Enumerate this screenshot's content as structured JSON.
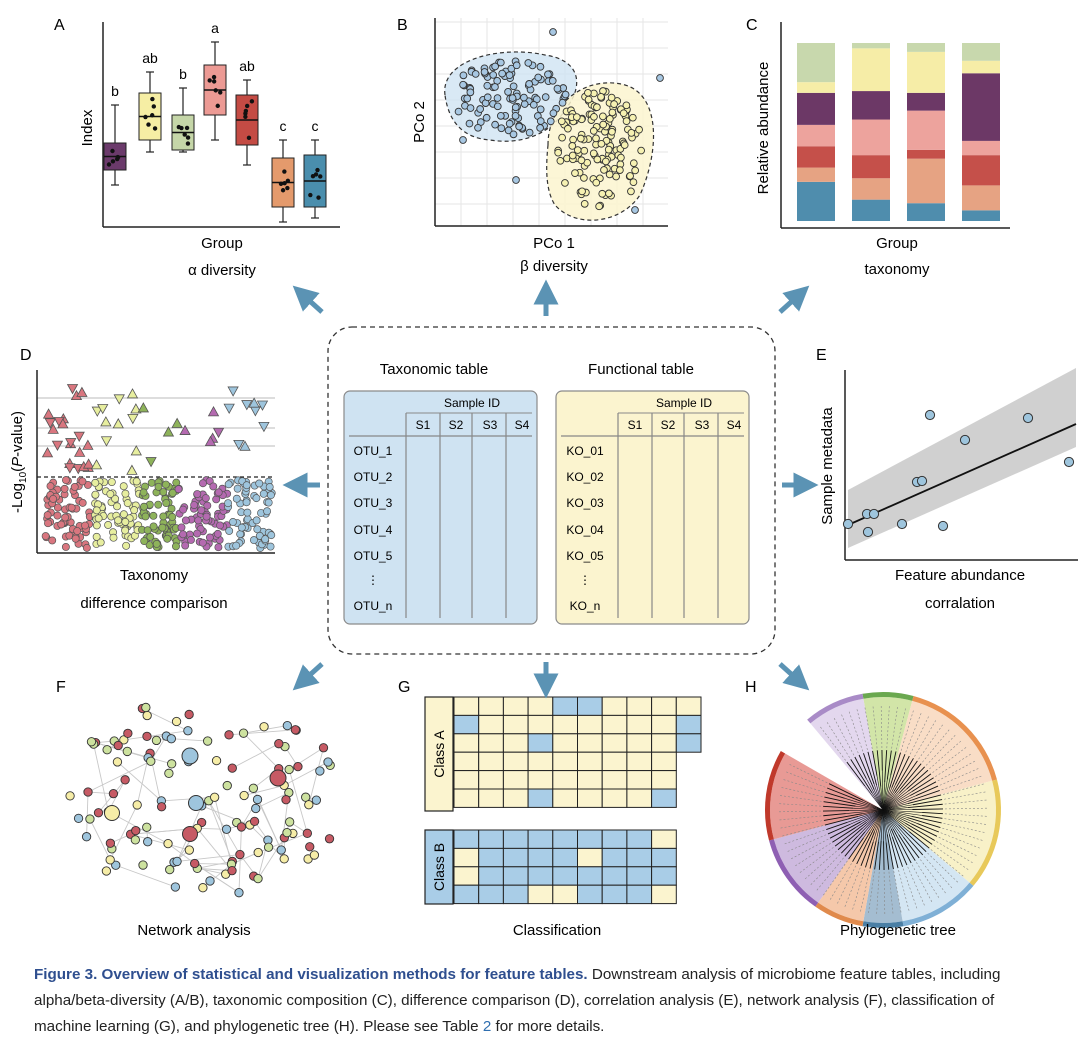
{
  "panels": {
    "A": {
      "letter": "A",
      "ylabel": "Index",
      "xlabel": "Group",
      "subtitle": "α diversity",
      "group_letters": [
        "b",
        "ab",
        "b",
        "a",
        "ab",
        "c",
        "c"
      ],
      "colors": [
        "#6b3a6b",
        "#f6eea4",
        "#c5d6a8",
        "#ec9a94",
        "#c44b44",
        "#e49a6c",
        "#4a8ead"
      ]
    },
    "B": {
      "letter": "B",
      "ylabel": "PCo 2",
      "xlabel": "PCo 1",
      "subtitle": "β diversity",
      "colors": [
        "#a7c7e2",
        "#f6f1b2"
      ]
    },
    "C": {
      "letter": "C",
      "ylabel": "Relative abundance",
      "xlabel": "Group",
      "subtitle": "taxonomy",
      "colors": [
        "#4f8dad",
        "#e6a383",
        "#c5504a",
        "#eda39d",
        "#6c3866",
        "#f6eda7",
        "#c8d8ad"
      ]
    },
    "D": {
      "letter": "D",
      "ylabel_pre": "-Log",
      "ylabel_sub": "10",
      "ylabel_mid": "(",
      "ylabel_italic": "P",
      "ylabel_post": "-value)",
      "xlabel": "Taxonomy",
      "subtitle": "difference comparison",
      "colors": [
        "#d9767f",
        "#e7ee9f",
        "#8eb35a",
        "#b46ab0",
        "#9ec5dd"
      ]
    },
    "E": {
      "letter": "E",
      "ylabel": "Sample metadata",
      "xlabel": "Feature abundance",
      "subtitle": "corralation"
    },
    "F": {
      "letter": "F",
      "title": "Network analysis"
    },
    "G": {
      "letter": "G",
      "title": "Classification",
      "class_a": "Class A",
      "class_b": "Class B"
    },
    "H": {
      "letter": "H",
      "title": "Phylogenetic tree"
    }
  },
  "center": {
    "tax_title": "Taxonomic table",
    "func_title": "Functional table",
    "sample_id": "Sample ID",
    "samples": [
      "S1",
      "S2",
      "S3",
      "S4"
    ],
    "tax_rows": [
      "OTU_1",
      "OTU_2",
      "OTU_3",
      "OTU_4",
      "OTU_5",
      "⋮",
      "OTU_n"
    ],
    "func_rows": [
      "KO_01",
      "KO_02",
      "KO_03",
      "KO_04",
      "KO_05",
      "⋮",
      "KO_n"
    ],
    "tax_fill": "#cfe3f2",
    "func_fill": "#fbf4cf"
  },
  "caption": {
    "title": "Figure 3. Overview of statistical and visualization methods for feature tables.",
    "text": " Downstream analysis of microbiome feature tables, including alpha/beta-diversity (A/B), taxonomic composition (C), difference comparison (D), correlation analysis (E), network analysis (F), classification of machine learning (G), and phylogenetic tree (H). Please see Table ",
    "ref": "2",
    "end": " for more details."
  },
  "arrow_color": "#5b93b4"
}
